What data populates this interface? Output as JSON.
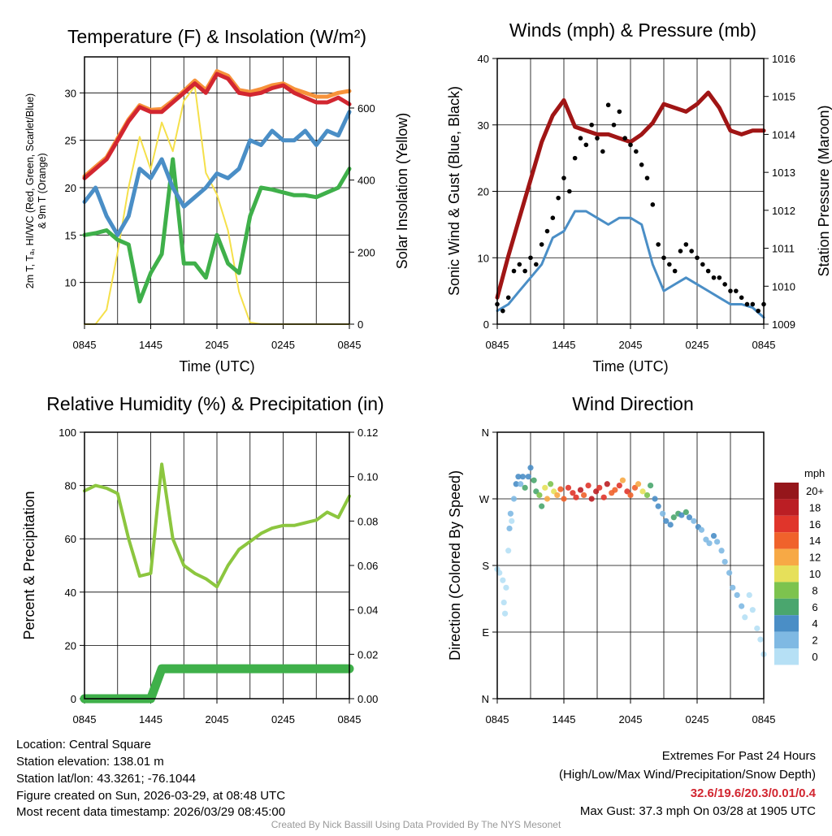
{
  "chart_data": [
    {
      "type": "line",
      "title": "Temperature (F) & Insolation (W/m²)",
      "xlabel": "Time (UTC)",
      "ylabel_lines": [
        "2m T, Tₐ, HI/WC (Red, Green, Scarlet/Blue)",
        "& 9m T (Orange)"
      ],
      "ylabel2": "Solar Insolation (Yellow)",
      "xticks": [
        "0845",
        "1445",
        "2045",
        "0245",
        "0845"
      ],
      "ylim": [
        5.6,
        33.8
      ],
      "yticks": [
        10,
        15,
        20,
        25,
        30
      ],
      "y2lim": [
        0,
        742
      ],
      "y2ticks": [
        0,
        200,
        400,
        600
      ],
      "x_hours": [
        0,
        1,
        2,
        3,
        4,
        5,
        6,
        7,
        8,
        9,
        10,
        11,
        12,
        13,
        14,
        15,
        16,
        17,
        18,
        19,
        20,
        21,
        22,
        23,
        24
      ],
      "series": [
        {
          "name": "Solar Insolation",
          "color": "#f5e04a",
          "axis": "right",
          "values": [
            0,
            0,
            40,
            200,
            380,
            520,
            430,
            560,
            480,
            620,
            660,
            420,
            360,
            260,
            90,
            5,
            0,
            0,
            0,
            0,
            0,
            0,
            0,
            0,
            0
          ]
        },
        {
          "name": "Wind Chill",
          "color": "#3fb04a",
          "axis": "left",
          "values": [
            15,
            15.2,
            15.5,
            14.5,
            14,
            8,
            11,
            13,
            23,
            12,
            12,
            10.5,
            15,
            12,
            11,
            17,
            20,
            19.8,
            19.5,
            19.2,
            19.2,
            19,
            19.5,
            20,
            22
          ]
        },
        {
          "name": "Dewpoint",
          "color": "#4a8ec6",
          "axis": "left",
          "values": [
            18.5,
            20,
            17,
            15,
            17,
            22,
            21,
            23,
            20,
            18,
            19,
            20,
            21.5,
            21,
            22,
            25,
            24.5,
            26,
            25,
            25,
            26,
            24.5,
            26,
            25.5,
            28
          ]
        },
        {
          "name": "9m T",
          "color": "#f7923a",
          "axis": "left",
          "values": [
            21.2,
            22.2,
            23.2,
            25.2,
            27.2,
            28.7,
            28.2,
            28.3,
            29.2,
            30.2,
            31.3,
            30.3,
            32.3,
            31.8,
            30.3,
            30.1,
            30.4,
            30.8,
            31,
            30.4,
            30,
            29.6,
            29.6,
            30,
            30.2
          ]
        },
        {
          "name": "2m T",
          "color": "#d22630",
          "axis": "left",
          "values": [
            21,
            22,
            23,
            25,
            27,
            28.5,
            28,
            28,
            29,
            30,
            31,
            30,
            32,
            31.5,
            30,
            29.8,
            30,
            30.5,
            30.8,
            30,
            29.5,
            29,
            29,
            29.5,
            28.8
          ]
        }
      ]
    },
    {
      "type": "line",
      "title": "Winds (mph) & Pressure (mb)",
      "xlabel": "Time (UTC)",
      "ylabel": "Sonic Wind & Gust (Blue, Black)",
      "ylabel2": "Station Pressure (Maroon)",
      "xticks": [
        "0845",
        "1445",
        "2045",
        "0245",
        "0845"
      ],
      "ylim": [
        0,
        40
      ],
      "yticks": [
        0,
        10,
        20,
        30,
        40
      ],
      "y2lim": [
        1009,
        1016
      ],
      "y2ticks": [
        1009,
        1010,
        1011,
        1012,
        1013,
        1014,
        1015,
        1016
      ],
      "x_hours": [
        0,
        1,
        2,
        3,
        4,
        5,
        6,
        7,
        8,
        9,
        10,
        11,
        12,
        13,
        14,
        15,
        16,
        17,
        18,
        19,
        20,
        21,
        22,
        23,
        24
      ],
      "wind": {
        "name": "Sonic Wind",
        "color": "#4a8ec6",
        "values": [
          2,
          3,
          5,
          7,
          9,
          13,
          14,
          17,
          17,
          16,
          15,
          16,
          16,
          15,
          9,
          5,
          6,
          7,
          6,
          5,
          4,
          3,
          3,
          2.5,
          1
        ]
      },
      "pressure": {
        "name": "Station Pressure",
        "color": "#a01515",
        "values": [
          1009.7,
          1010.8,
          1011.8,
          1012.8,
          1013.8,
          1014.5,
          1014.9,
          1014.2,
          1014.1,
          1014,
          1014,
          1013.9,
          1013.8,
          1014,
          1014.3,
          1014.8,
          1014.7,
          1014.6,
          1014.8,
          1015.1,
          1014.7,
          1014.1,
          1014,
          1014.1,
          1014.1
        ]
      },
      "gust": {
        "name": "Gust",
        "color": "#000000",
        "step_hours": 0.5,
        "values": [
          3,
          2,
          4,
          8,
          9,
          8,
          10,
          9,
          12,
          14,
          16,
          19,
          22,
          20,
          25,
          28,
          27,
          30,
          28,
          26,
          33,
          30,
          32,
          28,
          27,
          26,
          24,
          22,
          18,
          12,
          10,
          9,
          8,
          11,
          12,
          11,
          10,
          9,
          8,
          7,
          7,
          6,
          5,
          5,
          4,
          3,
          3,
          2,
          3
        ]
      }
    },
    {
      "type": "line",
      "title": "Relative Humidity (%) & Precipitation (in)",
      "xlabel": "",
      "ylabel": "Percent & Precipitation",
      "xticks": [
        "0845",
        "1445",
        "2045",
        "0245",
        "0845"
      ],
      "ylim": [
        0,
        100
      ],
      "yticks": [
        0,
        20,
        40,
        60,
        80,
        100
      ],
      "y2lim": [
        0,
        0.12
      ],
      "y2ticks": [
        "0.00",
        "0.02",
        "0.04",
        "0.06",
        "0.08",
        "0.10",
        "0.12"
      ],
      "x_hours": [
        0,
        1,
        2,
        3,
        4,
        5,
        6,
        7,
        8,
        9,
        10,
        11,
        12,
        13,
        14,
        15,
        16,
        17,
        18,
        19,
        20,
        21,
        22,
        23,
        24
      ],
      "rh": {
        "name": "Relative Humidity",
        "color": "#8cc63f",
        "values": [
          78,
          80,
          79,
          77,
          60,
          46,
          47,
          88,
          60,
          50,
          47,
          45,
          42,
          50,
          56,
          59,
          62,
          64,
          65,
          65,
          66,
          67,
          70,
          68,
          76
        ]
      },
      "precip": {
        "name": "Precipitation",
        "color": "#3fb04a",
        "values": [
          0,
          0,
          0,
          0,
          0,
          0,
          0,
          0.0135,
          0.0135,
          0.0135,
          0.0135,
          0.0135,
          0.0135,
          0.0135,
          0.0135,
          0.0135,
          0.0135,
          0.0135,
          0.0135,
          0.0135,
          0.0135,
          0.0135,
          0.0135,
          0.0135,
          0.0135
        ]
      }
    },
    {
      "type": "scatter",
      "title": "Wind Direction",
      "ylabel": "Direction (Colored By Speed)",
      "xticks": [
        "0845",
        "1445",
        "2045",
        "0245",
        "0845"
      ],
      "ylim": [
        0,
        360
      ],
      "yticks": [
        "N",
        "E",
        "S",
        "W",
        "N"
      ],
      "points_hour_dir_speed": [
        [
          0,
          175,
          1
        ],
        [
          0.2,
          170,
          1
        ],
        [
          0.5,
          160,
          1
        ],
        [
          0.6,
          130,
          1
        ],
        [
          0.7,
          115,
          1
        ],
        [
          0.8,
          150,
          1
        ],
        [
          1.0,
          200,
          1
        ],
        [
          1.1,
          230,
          2
        ],
        [
          1.2,
          250,
          2
        ],
        [
          1.3,
          240,
          1
        ],
        [
          1.5,
          270,
          2
        ],
        [
          1.7,
          290,
          4
        ],
        [
          1.9,
          300,
          4
        ],
        [
          2.1,
          290,
          3
        ],
        [
          2.3,
          300,
          4
        ],
        [
          2.5,
          285,
          6
        ],
        [
          2.8,
          300,
          5
        ],
        [
          3.0,
          312,
          4
        ],
        [
          3.3,
          295,
          6
        ],
        [
          3.5,
          280,
          7
        ],
        [
          3.8,
          275,
          8
        ],
        [
          4.0,
          260,
          7
        ],
        [
          4.3,
          285,
          10
        ],
        [
          4.5,
          270,
          12
        ],
        [
          4.8,
          290,
          9
        ],
        [
          5.1,
          280,
          11
        ],
        [
          5.4,
          275,
          13
        ],
        [
          5.7,
          283,
          14
        ],
        [
          6.0,
          270,
          15
        ],
        [
          6.4,
          285,
          16
        ],
        [
          6.8,
          278,
          17
        ],
        [
          7.1,
          272,
          16
        ],
        [
          7.5,
          282,
          18
        ],
        [
          7.8,
          275,
          15
        ],
        [
          8.2,
          288,
          17
        ],
        [
          8.5,
          270,
          19
        ],
        [
          8.9,
          280,
          18
        ],
        [
          9.2,
          285,
          16
        ],
        [
          9.6,
          272,
          17
        ],
        [
          9.9,
          290,
          18
        ],
        [
          10.3,
          278,
          15
        ],
        [
          10.6,
          282,
          14
        ],
        [
          11.0,
          288,
          17
        ],
        [
          11.3,
          295,
          13
        ],
        [
          11.7,
          280,
          16
        ],
        [
          12.0,
          275,
          15
        ],
        [
          12.4,
          285,
          14
        ],
        [
          12.7,
          290,
          12
        ],
        [
          13.1,
          280,
          11
        ],
        [
          13.5,
          275,
          9
        ],
        [
          13.8,
          288,
          7
        ],
        [
          14.2,
          270,
          5
        ],
        [
          14.5,
          260,
          4
        ],
        [
          14.9,
          250,
          3
        ],
        [
          15.2,
          240,
          4
        ],
        [
          15.6,
          235,
          4
        ],
        [
          15.9,
          245,
          6
        ],
        [
          16.3,
          250,
          7
        ],
        [
          16.6,
          248,
          5
        ],
        [
          17.0,
          252,
          6
        ],
        [
          17.3,
          245,
          4
        ],
        [
          17.7,
          240,
          3
        ],
        [
          18.1,
          232,
          4
        ],
        [
          18.4,
          228,
          3
        ],
        [
          18.8,
          215,
          3
        ],
        [
          19.1,
          210,
          2
        ],
        [
          19.5,
          220,
          4
        ],
        [
          19.8,
          212,
          3
        ],
        [
          20.2,
          200,
          2
        ],
        [
          20.5,
          185,
          2
        ],
        [
          20.9,
          170,
          2
        ],
        [
          21.2,
          150,
          2
        ],
        [
          21.6,
          140,
          2
        ],
        [
          22.0,
          125,
          2
        ],
        [
          22.3,
          110,
          1
        ],
        [
          22.7,
          140,
          1
        ],
        [
          23.0,
          120,
          1
        ],
        [
          23.4,
          95,
          1
        ],
        [
          23.7,
          80,
          1
        ],
        [
          24.0,
          60,
          1
        ]
      ],
      "legend": {
        "title": "mph",
        "labels": [
          "20+",
          "18",
          "16",
          "14",
          "12",
          "10",
          "8",
          "6",
          "4",
          "2",
          "0"
        ],
        "colors": [
          "#95161b",
          "#bb1e24",
          "#e0352b",
          "#f0622b",
          "#f7a945",
          "#e6e05a",
          "#7dc34e",
          "#4aa66e",
          "#4a8ec6",
          "#7fb9e3",
          "#b6e0f5"
        ]
      }
    }
  ],
  "footer": {
    "location": "Location: Central Square",
    "elevation": "Station elevation: 138.01 m",
    "latlon": "Station lat/lon: 43.3261; -76.1044",
    "created": "Figure created on Sun, 2026-03-29, at 08:48 UTC",
    "recent": "Most recent data timestamp: 2026/03/29 08:45:00",
    "extremes_title": "Extremes For Past 24 Hours",
    "extremes_sub": "(High/Low/Max Wind/Precipitation/Snow Depth)",
    "extremes_values": "32.6/19.6/20.3/0.01/0.4",
    "max_gust": "Max Gust: 37.3 mph On 03/28 at 1905 UTC",
    "credit": "Created By Nick Bassill Using Data Provided By The NYS Mesonet"
  }
}
